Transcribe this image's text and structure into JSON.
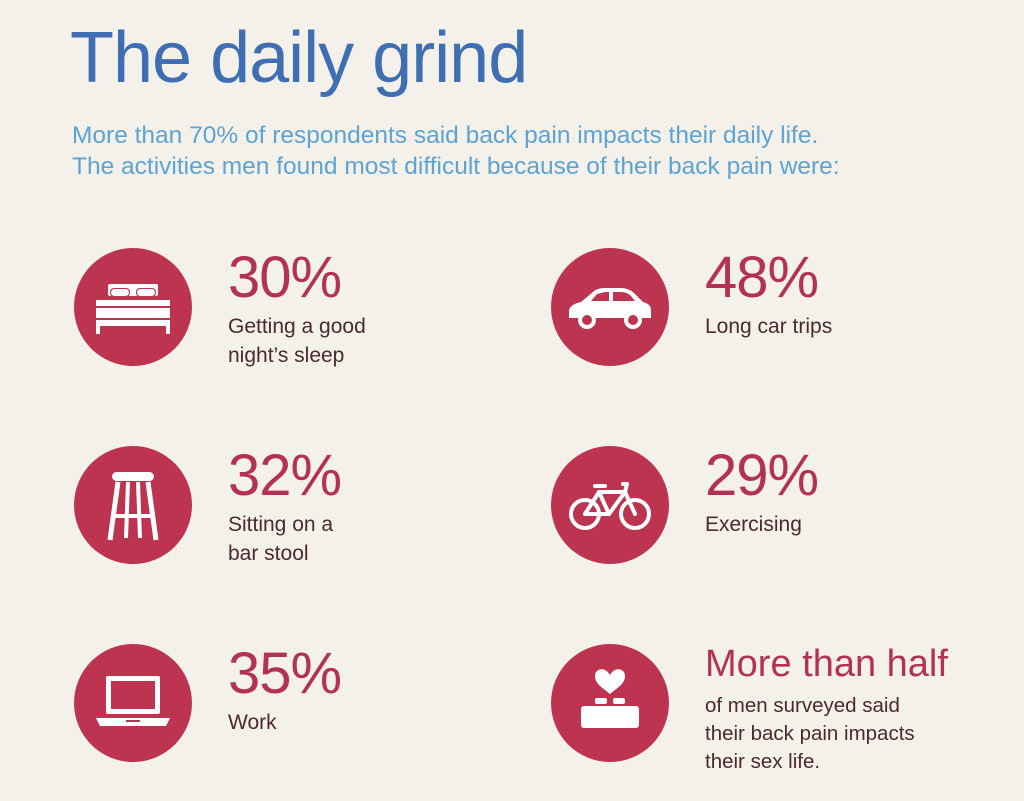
{
  "title": "The daily grind",
  "intro": {
    "line1": "More than 70% of respondents said back pain impacts their daily life.",
    "line2": "The activities men found most difficult because of their back pain were:"
  },
  "colors": {
    "background": "#f3f1ea",
    "title": "#3f6fb2",
    "intro": "#5da3d3",
    "circle": "#bc3450",
    "value": "#b23250",
    "label": "#4a2a30"
  },
  "stats": [
    {
      "value": "30%",
      "label_line1": "Getting a good",
      "label_line2": "night’s sleep",
      "icon": "bed-icon"
    },
    {
      "value": "48%",
      "label_line1": "Long car trips",
      "icon": "car-icon"
    },
    {
      "value": "32%",
      "label_line1": "Sitting on a",
      "label_line2": "bar stool",
      "icon": "bar-stool-icon"
    },
    {
      "value": "29%",
      "label_line1": "Exercising",
      "icon": "bicycle-icon"
    },
    {
      "value": "35%",
      "label_line1": "Work",
      "icon": "laptop-icon"
    },
    {
      "headline": "More than half",
      "label_line1": "of men surveyed said",
      "label_line2": "their back pain impacts",
      "label_line3": "their sex life.",
      "icon": "heart-bed-icon"
    }
  ]
}
